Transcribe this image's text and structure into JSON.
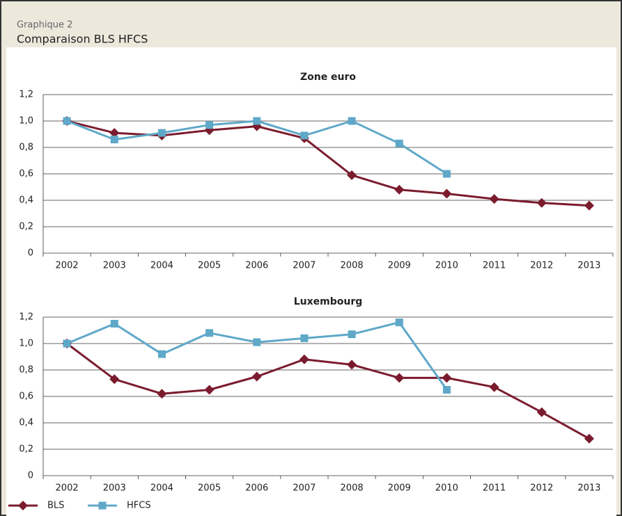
{
  "header": {
    "label": "Graphique 2",
    "title": "Comparaison BLS HFCS"
  },
  "chart_data": [
    {
      "type": "line",
      "title": "Zone euro",
      "categories": [
        "2002",
        "2003",
        "2004",
        "2005",
        "2006",
        "2007",
        "2008",
        "2009",
        "2010",
        "2011",
        "2012",
        "2013"
      ],
      "series": [
        {
          "name": "BLS",
          "color": "#7b1c2e",
          "marker": "diamond",
          "values": [
            1.0,
            0.91,
            0.89,
            0.93,
            0.96,
            0.87,
            0.59,
            0.48,
            0.45,
            0.41,
            0.38,
            0.36
          ]
        },
        {
          "name": "HFCS",
          "color": "#5fa8c8",
          "marker": "square",
          "values": [
            1.0,
            0.86,
            0.91,
            0.97,
            1.0,
            0.89,
            1.0,
            0.83,
            0.6,
            null,
            null,
            null
          ]
        }
      ],
      "ylim": [
        0,
        1.2
      ],
      "yticks": [
        0,
        {
          "value": 0.2,
          "label": "0,2"
        },
        {
          "value": 0.4,
          "label": "0,4"
        },
        {
          "value": 0.6,
          "label": "0,6"
        },
        {
          "value": 0.8,
          "label": "0,8"
        },
        {
          "value": 1.0,
          "label": "1,0"
        },
        {
          "value": 1.2,
          "label": "1,2"
        }
      ],
      "grid": true
    },
    {
      "type": "line",
      "title": "Luxembourg",
      "categories": [
        "2002",
        "2003",
        "2004",
        "2005",
        "2006",
        "2007",
        "2008",
        "2009",
        "2010",
        "2011",
        "2012",
        "2013"
      ],
      "series": [
        {
          "name": "BLS",
          "color": "#7b1c2e",
          "marker": "diamond",
          "values": [
            1.0,
            0.73,
            0.62,
            0.65,
            0.75,
            0.88,
            0.84,
            0.74,
            0.74,
            0.67,
            0.48,
            0.28
          ]
        },
        {
          "name": "HFCS",
          "color": "#5fa8c8",
          "marker": "square",
          "values": [
            1.0,
            1.15,
            0.92,
            1.08,
            1.01,
            1.04,
            1.07,
            1.16,
            0.65,
            null,
            null,
            null
          ]
        }
      ],
      "ylim": [
        0,
        1.2
      ],
      "yticks": [
        0,
        {
          "value": 0.2,
          "label": "0,2"
        },
        {
          "value": 0.4,
          "label": "0,4"
        },
        {
          "value": 0.6,
          "label": "0,6"
        },
        {
          "value": 0.8,
          "label": "0,8"
        },
        {
          "value": 1.0,
          "label": "1,0"
        },
        {
          "value": 1.2,
          "label": "1,2"
        }
      ],
      "grid": true,
      "legend": "bottom-left"
    }
  ]
}
